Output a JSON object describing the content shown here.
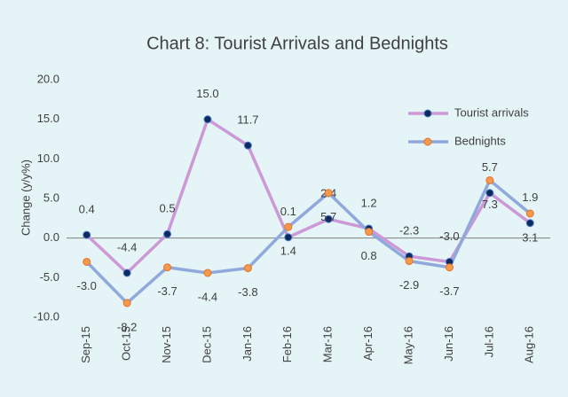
{
  "chart_data": {
    "type": "line",
    "title": "Chart 8: Tourist Arrivals and Bednights",
    "ylabel": "Change (y/y%)",
    "categories": [
      "Sep-15",
      "Oct-15",
      "Nov-15",
      "Dec-15",
      "Jan-16",
      "Feb-16",
      "Mar-16",
      "Apr-16",
      "May-16",
      "Jun-16",
      "Jul-16",
      "Aug-16"
    ],
    "series": [
      {
        "name": "Tourist arrivals",
        "color": "#cc99d6",
        "marker_color": "#0d2a5c",
        "values": [
          0.4,
          -4.4,
          0.5,
          15.0,
          11.7,
          0.1,
          2.4,
          1.2,
          -2.3,
          -3.0,
          5.7,
          1.9
        ],
        "value_labels": [
          "0.4",
          "-4.4",
          "0.5",
          "15.0",
          "11.7",
          "0.1",
          "2.4",
          "1.2",
          "-2.3",
          "-3.0",
          "5.7",
          "1.9"
        ]
      },
      {
        "name": "Bednights",
        "color": "#8fa9dc",
        "marker_color": "#f39a4d",
        "values": [
          -3.0,
          -8.2,
          -3.7,
          -4.4,
          -3.8,
          1.4,
          5.7,
          0.8,
          -2.9,
          -3.7,
          7.3,
          3.1
        ],
        "value_labels": [
          "-3.0",
          "-8.2",
          "-3.7",
          "-4.4",
          "-3.8",
          "1.4",
          "5.7",
          "0.8",
          "-2.9",
          "-3.7",
          "7.3",
          "3.1"
        ]
      }
    ],
    "ylim": [
      -10,
      20
    ],
    "yticks": [
      {
        "value": -10,
        "label": "-10.0"
      },
      {
        "value": -5,
        "label": "-5.0"
      },
      {
        "value": 0,
        "label": "0.0"
      },
      {
        "value": 5,
        "label": "5.0"
      },
      {
        "value": 10,
        "label": "10.0"
      },
      {
        "value": 15,
        "label": "15.0"
      },
      {
        "value": 20,
        "label": "20.0"
      }
    ],
    "grid": false,
    "legend": "upper right"
  }
}
